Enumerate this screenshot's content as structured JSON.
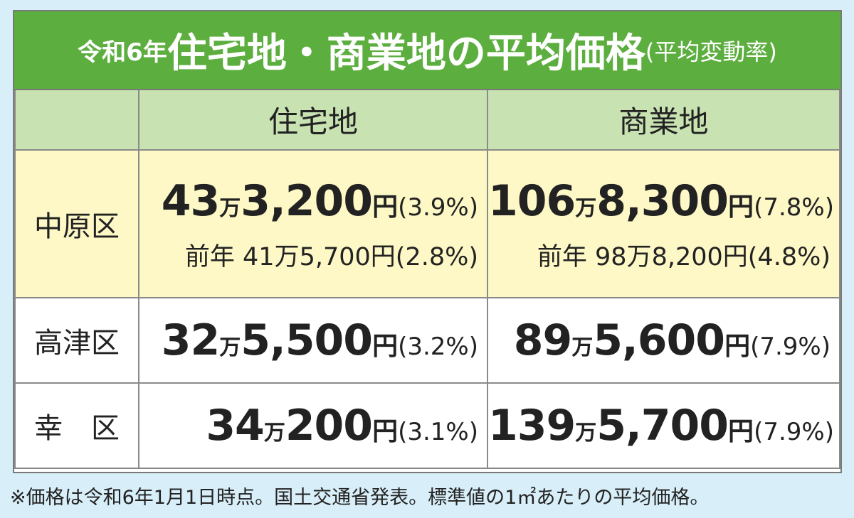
{
  "title": [
    "令和6年",
    "住宅地・商業地の平均価格",
    "(平均変動率)"
  ],
  "table": {
    "columns": [
      "住宅地",
      "商業地"
    ],
    "rows": [
      {
        "district": "中原区",
        "cells": [
          {
            "current": [
              "43",
              "万",
              "3,200",
              "円",
              "(3.9%)"
            ],
            "previous": "前年 41万5,700円(2.8%)"
          },
          {
            "current": [
              "106",
              "万",
              "8,300",
              "円",
              "(7.8%)"
            ],
            "previous": "前年 98万8,200円(4.8%)"
          }
        ]
      },
      {
        "district": "高津区",
        "cells": [
          {
            "current": [
              "32",
              "万",
              "5,500",
              "円",
              "(3.2%)"
            ]
          },
          {
            "current": [
              "89",
              "万",
              "5,600",
              "円",
              "(7.9%)"
            ]
          }
        ]
      },
      {
        "district": "幸　区",
        "cells": [
          {
            "current": [
              "34",
              "万",
              "200",
              "円",
              "(3.1%)"
            ]
          },
          {
            "current": [
              "139",
              "万",
              "5,700",
              "円",
              "(7.9%)"
            ]
          }
        ]
      }
    ]
  },
  "footnote": "※価格は令和6年1月1日時点。国土交通省発表。標準値の1㎡あたりの平均価格。"
}
